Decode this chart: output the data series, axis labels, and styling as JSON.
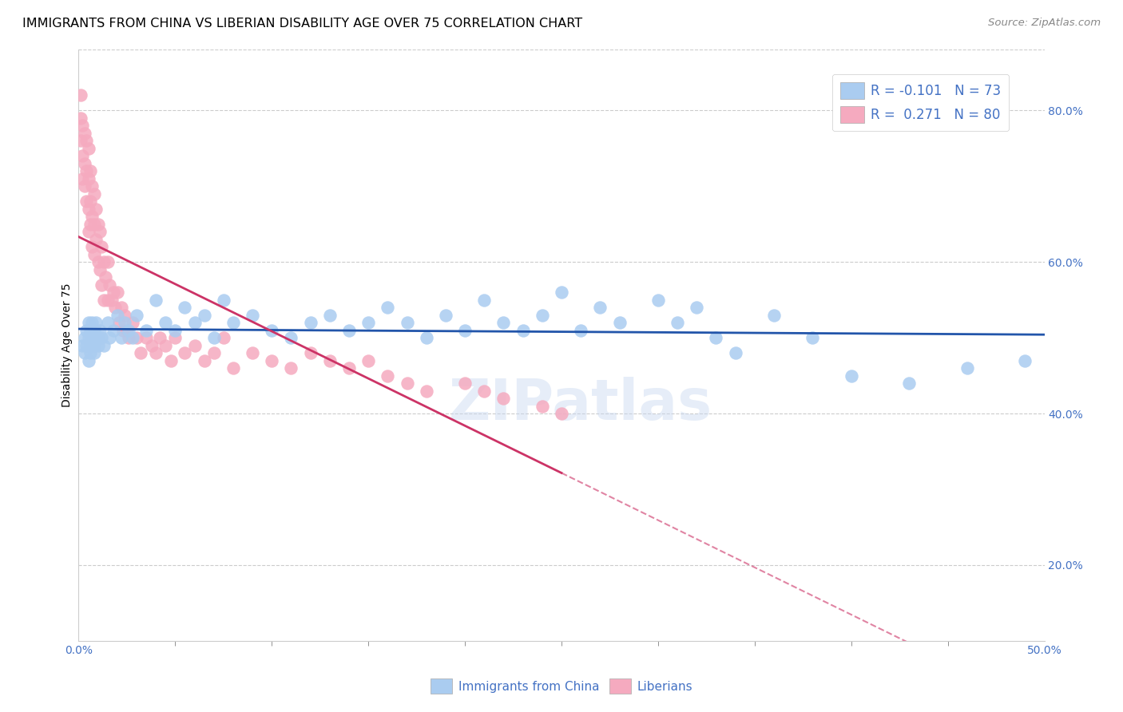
{
  "title": "IMMIGRANTS FROM CHINA VS LIBERIAN DISABILITY AGE OVER 75 CORRELATION CHART",
  "source": "Source: ZipAtlas.com",
  "ylabel": "Disability Age Over 75",
  "xlim": [
    0.0,
    0.5
  ],
  "ylim": [
    0.1,
    0.88
  ],
  "yticks_right": [
    0.2,
    0.4,
    0.6,
    0.8
  ],
  "xticks_show": [
    0.0,
    0.5
  ],
  "china_R": -0.101,
  "china_N": 73,
  "liberia_R": 0.271,
  "liberia_N": 80,
  "china_color": "#aaccf0",
  "liberia_color": "#f5aabf",
  "china_line_color": "#2255aa",
  "liberia_line_color": "#cc3366",
  "background_color": "#ffffff",
  "grid_color": "#cccccc",
  "watermark": "ZIPatlas",
  "title_fontsize": 11.5,
  "source_fontsize": 9.5,
  "legend_fontsize": 12,
  "legend_labels": [
    "Immigrants from China",
    "Liberians"
  ],
  "china_x": [
    0.002,
    0.003,
    0.003,
    0.004,
    0.004,
    0.005,
    0.005,
    0.005,
    0.006,
    0.006,
    0.006,
    0.007,
    0.007,
    0.008,
    0.008,
    0.008,
    0.009,
    0.009,
    0.01,
    0.01,
    0.011,
    0.012,
    0.013,
    0.015,
    0.016,
    0.018,
    0.02,
    0.022,
    0.024,
    0.026,
    0.028,
    0.03,
    0.035,
    0.04,
    0.045,
    0.05,
    0.055,
    0.06,
    0.065,
    0.07,
    0.075,
    0.08,
    0.09,
    0.1,
    0.11,
    0.12,
    0.13,
    0.14,
    0.15,
    0.16,
    0.17,
    0.18,
    0.19,
    0.2,
    0.21,
    0.22,
    0.23,
    0.24,
    0.25,
    0.26,
    0.27,
    0.28,
    0.3,
    0.31,
    0.32,
    0.33,
    0.34,
    0.36,
    0.38,
    0.4,
    0.43,
    0.46,
    0.49
  ],
  "china_y": [
    0.49,
    0.5,
    0.48,
    0.51,
    0.49,
    0.52,
    0.5,
    0.47,
    0.51,
    0.49,
    0.48,
    0.5,
    0.52,
    0.49,
    0.51,
    0.48,
    0.5,
    0.52,
    0.5,
    0.49,
    0.51,
    0.5,
    0.49,
    0.52,
    0.5,
    0.51,
    0.53,
    0.5,
    0.52,
    0.51,
    0.5,
    0.53,
    0.51,
    0.55,
    0.52,
    0.51,
    0.54,
    0.52,
    0.53,
    0.5,
    0.55,
    0.52,
    0.53,
    0.51,
    0.5,
    0.52,
    0.53,
    0.51,
    0.52,
    0.54,
    0.52,
    0.5,
    0.53,
    0.51,
    0.55,
    0.52,
    0.51,
    0.53,
    0.56,
    0.51,
    0.54,
    0.52,
    0.55,
    0.52,
    0.54,
    0.5,
    0.48,
    0.53,
    0.5,
    0.45,
    0.44,
    0.46,
    0.47
  ],
  "liberia_x": [
    0.001,
    0.001,
    0.001,
    0.002,
    0.002,
    0.002,
    0.003,
    0.003,
    0.003,
    0.004,
    0.004,
    0.004,
    0.005,
    0.005,
    0.005,
    0.005,
    0.006,
    0.006,
    0.006,
    0.007,
    0.007,
    0.007,
    0.008,
    0.008,
    0.008,
    0.009,
    0.009,
    0.01,
    0.01,
    0.011,
    0.011,
    0.012,
    0.012,
    0.013,
    0.013,
    0.014,
    0.015,
    0.015,
    0.016,
    0.017,
    0.018,
    0.019,
    0.02,
    0.021,
    0.022,
    0.023,
    0.024,
    0.025,
    0.026,
    0.028,
    0.03,
    0.032,
    0.035,
    0.038,
    0.04,
    0.042,
    0.045,
    0.048,
    0.05,
    0.055,
    0.06,
    0.065,
    0.07,
    0.075,
    0.08,
    0.09,
    0.1,
    0.11,
    0.12,
    0.13,
    0.14,
    0.15,
    0.16,
    0.17,
    0.18,
    0.2,
    0.21,
    0.22,
    0.24,
    0.25
  ],
  "liberia_y": [
    0.82,
    0.79,
    0.76,
    0.78,
    0.74,
    0.71,
    0.77,
    0.73,
    0.7,
    0.76,
    0.72,
    0.68,
    0.75,
    0.71,
    0.67,
    0.64,
    0.72,
    0.68,
    0.65,
    0.7,
    0.66,
    0.62,
    0.69,
    0.65,
    0.61,
    0.67,
    0.63,
    0.65,
    0.6,
    0.64,
    0.59,
    0.62,
    0.57,
    0.6,
    0.55,
    0.58,
    0.6,
    0.55,
    0.57,
    0.55,
    0.56,
    0.54,
    0.56,
    0.52,
    0.54,
    0.51,
    0.53,
    0.51,
    0.5,
    0.52,
    0.5,
    0.48,
    0.5,
    0.49,
    0.48,
    0.5,
    0.49,
    0.47,
    0.5,
    0.48,
    0.49,
    0.47,
    0.48,
    0.5,
    0.46,
    0.48,
    0.47,
    0.46,
    0.48,
    0.47,
    0.46,
    0.47,
    0.45,
    0.44,
    0.43,
    0.44,
    0.43,
    0.42,
    0.41,
    0.4
  ]
}
